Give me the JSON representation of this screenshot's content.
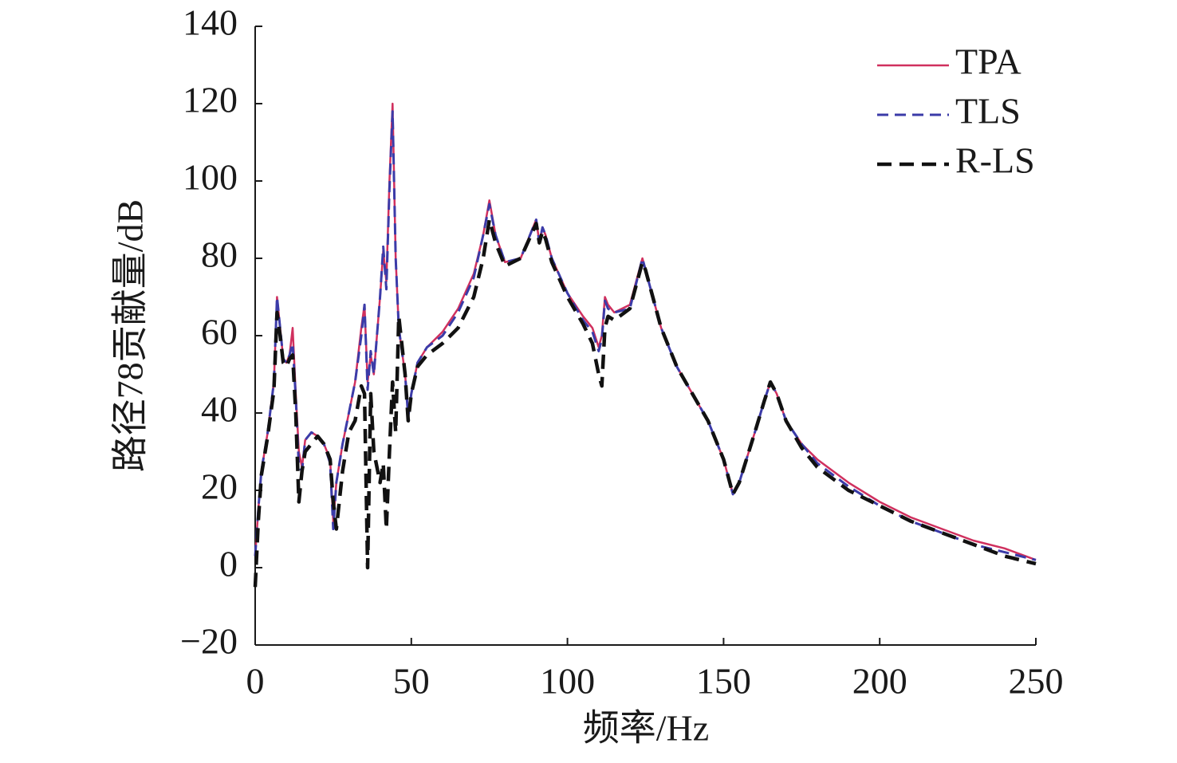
{
  "chart_data": {
    "type": "line",
    "xlabel": "频率/Hz",
    "ylabel": "路径78贡献量/dB",
    "x": [
      0,
      1,
      2,
      4,
      6,
      7,
      8,
      9,
      10,
      11,
      12,
      13,
      14,
      15,
      16,
      18,
      20,
      22,
      24,
      25,
      26,
      28,
      30,
      32,
      34,
      35,
      36,
      37,
      38,
      40,
      41,
      42,
      43,
      44,
      45,
      46,
      48,
      49,
      50,
      52,
      55,
      60,
      65,
      70,
      73,
      75,
      77,
      80,
      85,
      90,
      91,
      92,
      93,
      95,
      100,
      105,
      108,
      110,
      111,
      112,
      113,
      115,
      120,
      124,
      125,
      130,
      135,
      140,
      145,
      150,
      153,
      155,
      160,
      163,
      165,
      167,
      170,
      175,
      180,
      190,
      200,
      210,
      220,
      230,
      240,
      250
    ],
    "series": [
      {
        "name": "TPA",
        "color": "#d0305e",
        "dash": "none",
        "width": 2.5,
        "values": [
          3,
          15,
          25,
          35,
          48,
          70,
          62,
          54,
          53,
          55,
          62,
          45,
          30,
          26,
          33,
          35,
          34,
          32,
          28,
          12,
          22,
          32,
          40,
          48,
          62,
          68,
          48,
          55,
          50,
          70,
          82,
          74,
          100,
          120,
          80,
          62,
          50,
          40,
          45,
          53,
          57,
          61,
          67,
          76,
          86,
          95,
          86,
          79,
          80,
          90,
          84,
          88,
          86,
          80,
          71,
          65,
          62,
          57,
          60,
          70,
          68,
          66,
          68,
          80,
          77,
          62,
          52,
          45,
          38,
          28,
          19,
          22,
          35,
          43,
          48,
          45,
          38,
          32,
          28,
          22,
          17,
          13,
          10,
          7,
          5,
          2
        ]
      },
      {
        "name": "TLS",
        "color": "#3b3ba8",
        "dash": "14 8",
        "width": 3,
        "values": [
          3,
          15,
          25,
          35,
          48,
          70,
          62,
          54,
          53,
          55,
          58,
          44,
          26,
          25,
          33,
          35,
          34,
          32,
          27,
          10,
          22,
          32,
          40,
          48,
          60,
          68,
          46,
          56,
          50,
          70,
          83,
          72,
          98,
          118,
          80,
          62,
          50,
          39,
          45,
          53,
          57,
          60,
          66,
          75,
          86,
          94,
          86,
          79,
          80,
          90,
          84,
          88,
          86,
          80,
          71,
          64,
          61,
          56,
          59,
          69,
          67,
          66,
          67,
          80,
          77,
          62,
          52,
          45,
          38,
          28,
          19,
          22,
          35,
          43,
          48,
          45,
          38,
          32,
          27,
          21,
          16,
          12,
          9,
          6,
          4,
          2
        ]
      },
      {
        "name": "R-LS",
        "color": "#111111",
        "dash": "18 10",
        "width": 4.5,
        "values": [
          -5,
          12,
          24,
          34,
          46,
          66,
          60,
          53,
          52,
          54,
          55,
          40,
          17,
          25,
          30,
          32,
          34,
          32,
          28,
          17,
          10,
          25,
          35,
          38,
          47,
          45,
          0,
          45,
          30,
          22,
          27,
          10,
          30,
          48,
          35,
          65,
          50,
          38,
          45,
          52,
          55,
          58,
          62,
          70,
          80,
          90,
          84,
          78,
          80,
          89,
          84,
          87,
          85,
          79,
          70,
          63,
          58,
          50,
          47,
          62,
          65,
          64,
          67,
          79,
          77,
          62,
          52,
          45,
          38,
          28,
          19,
          22,
          35,
          43,
          48,
          45,
          38,
          31,
          26,
          20,
          16,
          12,
          9,
          6,
          3,
          1
        ]
      }
    ],
    "xlim": [
      0,
      250
    ],
    "xticks": [
      0,
      50,
      100,
      150,
      200,
      250
    ],
    "ylim": [
      -20,
      140
    ],
    "yticks": [
      {
        "value": -20,
        "label": "−20"
      },
      0,
      20,
      40,
      60,
      80,
      100,
      120,
      140
    ],
    "legend": "upper right"
  }
}
